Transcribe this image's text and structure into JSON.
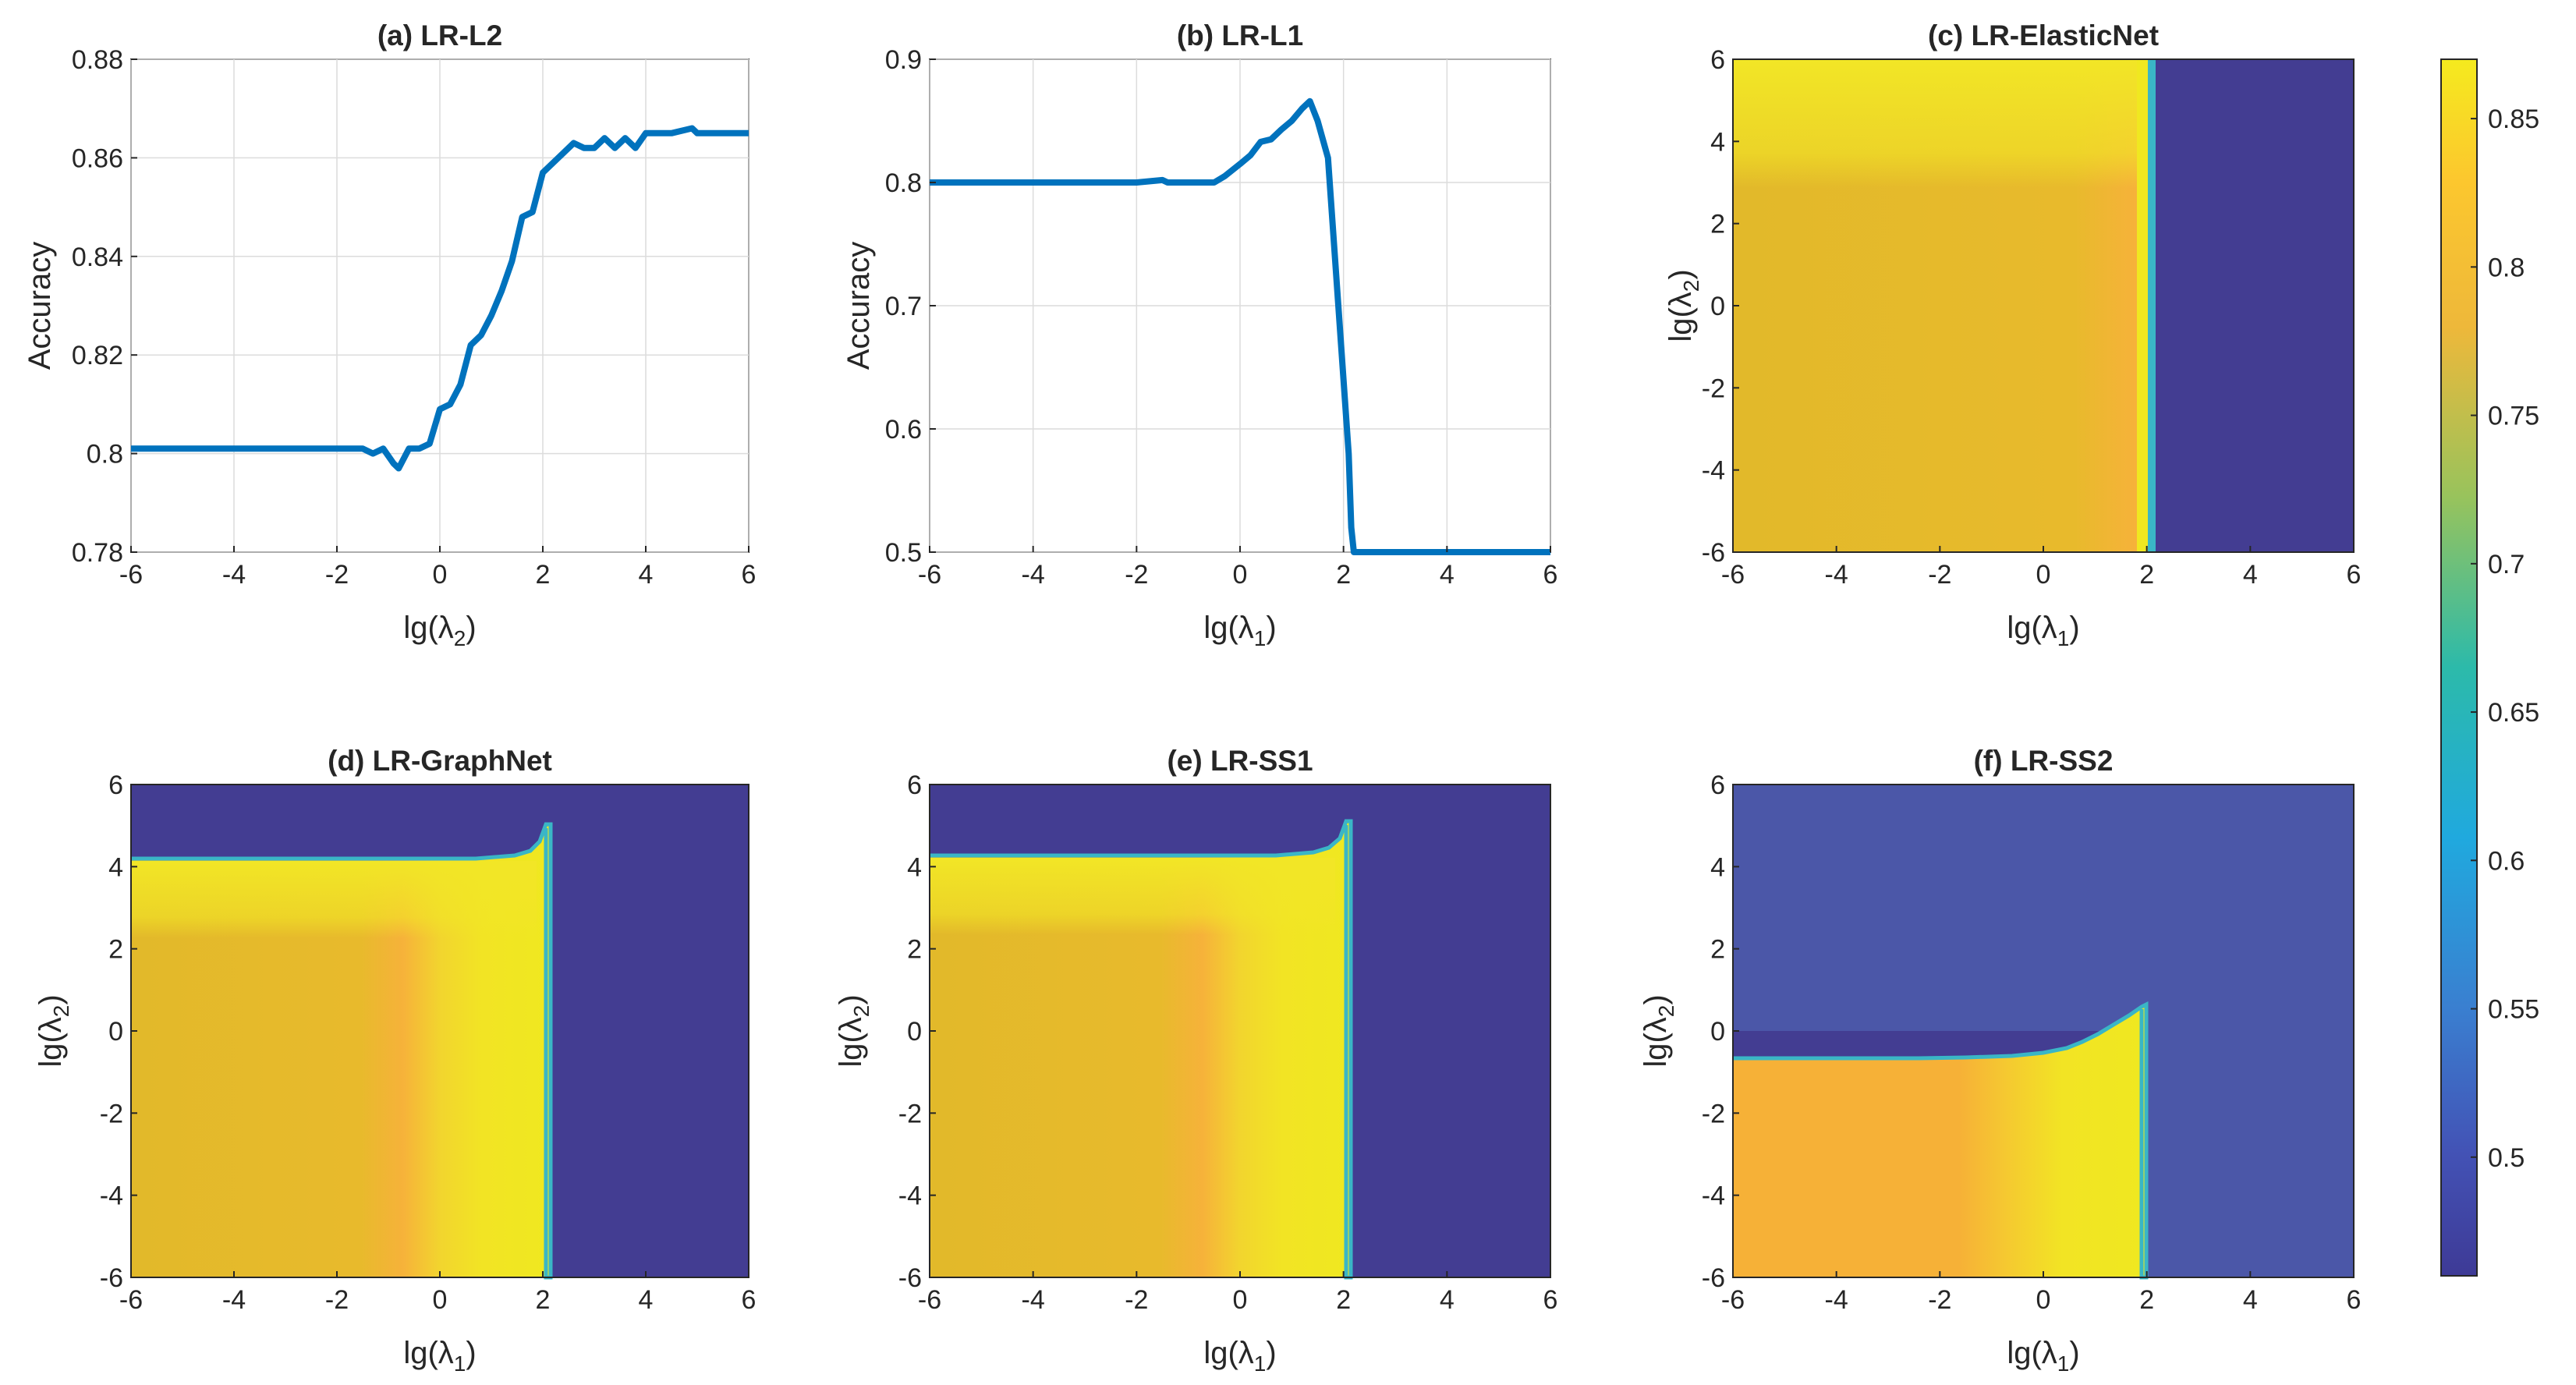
{
  "colors": {
    "line": "#0072BD",
    "axis": "#262626",
    "grid": "#dcdcdc",
    "parula_low": "#3E3A96",
    "parula_high": "#F0E620"
  },
  "chart_data": [
    {
      "id": "a",
      "type": "line",
      "title": "(a) LR-L2",
      "xlabel": "lg(λ2)",
      "ylabel": "Accuracy",
      "xlim": [
        -6,
        6
      ],
      "ylim": [
        0.78,
        0.88
      ],
      "xticks": [
        "-6",
        "-4",
        "-2",
        "0",
        "2",
        "4",
        "6"
      ],
      "yticks": [
        "0.78",
        "0.8",
        "0.82",
        "0.84",
        "0.86",
        "0.88"
      ],
      "grid": true,
      "x": [
        -6,
        -5,
        -4,
        -3,
        -2,
        -1.5,
        -1.3,
        -1.1,
        -0.9,
        -0.8,
        -0.6,
        -0.4,
        -0.2,
        0,
        0.2,
        0.4,
        0.6,
        0.8,
        1.0,
        1.2,
        1.4,
        1.6,
        1.8,
        2.0,
        2.2,
        2.4,
        2.6,
        2.8,
        3.0,
        3.2,
        3.4,
        3.6,
        3.8,
        4.0,
        4.5,
        4.9,
        5.0,
        5.5,
        6.0
      ],
      "y": [
        0.801,
        0.801,
        0.801,
        0.801,
        0.801,
        0.801,
        0.8,
        0.801,
        0.798,
        0.797,
        0.801,
        0.801,
        0.802,
        0.809,
        0.81,
        0.814,
        0.822,
        0.824,
        0.828,
        0.833,
        0.839,
        0.848,
        0.849,
        0.857,
        0.859,
        0.861,
        0.863,
        0.862,
        0.862,
        0.864,
        0.862,
        0.864,
        0.862,
        0.865,
        0.865,
        0.866,
        0.865,
        0.865,
        0.865
      ]
    },
    {
      "id": "b",
      "type": "line",
      "title": "(b) LR-L1",
      "xlabel": "lg(λ1)",
      "ylabel": "Accuracy",
      "xlim": [
        -6,
        6
      ],
      "ylim": [
        0.5,
        0.9
      ],
      "xticks": [
        "-6",
        "-4",
        "-2",
        "0",
        "2",
        "4",
        "6"
      ],
      "yticks": [
        "0.5",
        "0.6",
        "0.7",
        "0.8",
        "0.9"
      ],
      "grid": true,
      "x": [
        -6,
        -4,
        -2,
        -1.5,
        -1.4,
        -1.0,
        -0.5,
        -0.3,
        0,
        0.2,
        0.4,
        0.6,
        0.8,
        1.0,
        1.2,
        1.35,
        1.5,
        1.7,
        1.8,
        1.9,
        2.0,
        2.1,
        2.15,
        2.2,
        3,
        4,
        5,
        6
      ],
      "y": [
        0.8,
        0.8,
        0.8,
        0.802,
        0.8,
        0.8,
        0.8,
        0.805,
        0.815,
        0.822,
        0.833,
        0.835,
        0.843,
        0.85,
        0.86,
        0.866,
        0.85,
        0.82,
        0.76,
        0.7,
        0.64,
        0.58,
        0.52,
        0.5,
        0.5,
        0.5,
        0.5,
        0.5
      ]
    },
    {
      "id": "c",
      "type": "heatmap",
      "title": "(c) LR-ElasticNet",
      "xlabel": "lg(λ1)",
      "ylabel": "lg(λ2)",
      "xlim": [
        -6,
        6
      ],
      "ylim": [
        -6,
        6
      ],
      "xticks": [
        "-6",
        "-4",
        "-2",
        "0",
        "2",
        "4",
        "6"
      ],
      "yticks": [
        "-6",
        "-4",
        "-2",
        "0",
        "2",
        "4",
        "6"
      ],
      "cutoff_x": 2.1
    },
    {
      "id": "d",
      "type": "heatmap",
      "title": "(d) LR-GraphNet",
      "xlabel": "lg(λ1)",
      "ylabel": "lg(λ2)",
      "xlim": [
        -6,
        6
      ],
      "ylim": [
        -6,
        6
      ],
      "xticks": [
        "-6",
        "-4",
        "-2",
        "0",
        "2",
        "4",
        "6"
      ],
      "yticks": [
        "-6",
        "-4",
        "-2",
        "0",
        "2",
        "4",
        "6"
      ],
      "cutoff_x": 2.1,
      "cutoff_y": 4.2
    },
    {
      "id": "e",
      "type": "heatmap",
      "title": "(e) LR-SS1",
      "xlabel": "lg(λ1)",
      "ylabel": "lg(λ2)",
      "xlim": [
        -6,
        6
      ],
      "ylim": [
        -6,
        6
      ],
      "xticks": [
        "-6",
        "-4",
        "-2",
        "0",
        "2",
        "4",
        "6"
      ],
      "yticks": [
        "-6",
        "-4",
        "-2",
        "0",
        "2",
        "4",
        "6"
      ],
      "cutoff_x": 2.1,
      "cutoff_y": 4.3
    },
    {
      "id": "f",
      "type": "heatmap",
      "title": "(f) LR-SS2",
      "xlabel": "lg(λ1)",
      "ylabel": "lg(λ2)",
      "xlim": [
        -6,
        6
      ],
      "ylim": [
        -6,
        6
      ],
      "xticks": [
        "-6",
        "-4",
        "-2",
        "0",
        "2",
        "4",
        "6"
      ],
      "yticks": [
        "-6",
        "-4",
        "-2",
        "0",
        "2",
        "4",
        "6"
      ],
      "cutoff_x": 2.1,
      "cutoff_y": -1.6
    }
  ],
  "colorbar": {
    "range": [
      0.46,
      0.87
    ],
    "ticks": [
      "0.5",
      "0.55",
      "0.6",
      "0.65",
      "0.7",
      "0.75",
      "0.8",
      "0.85"
    ]
  }
}
